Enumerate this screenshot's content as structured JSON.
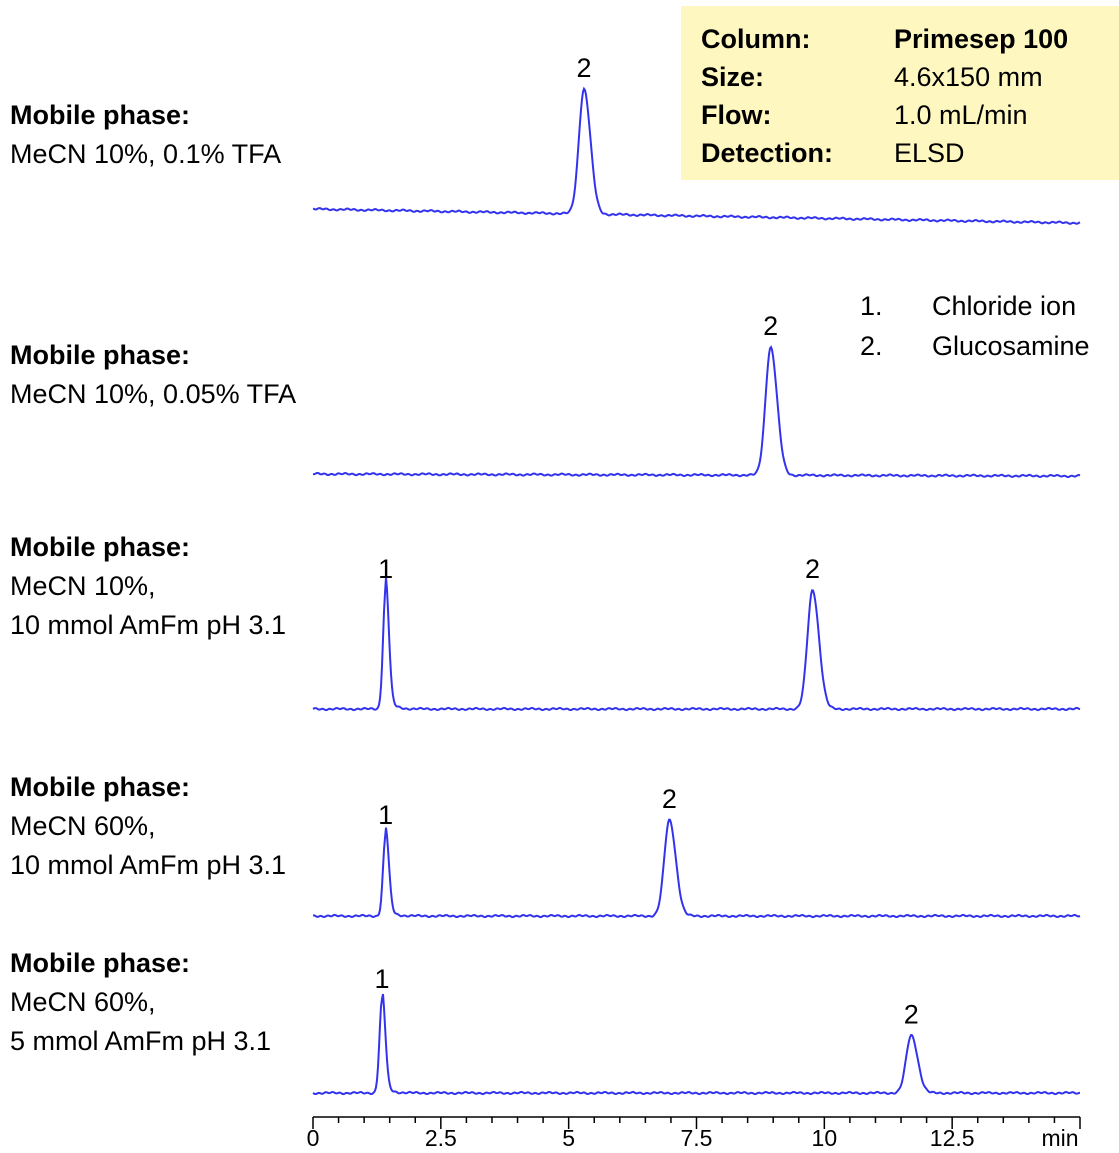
{
  "info": {
    "background": "#FFF7C0",
    "rows": [
      {
        "label": "Column:",
        "value": "Primesep 100"
      },
      {
        "label": "Size:",
        "value": "4.6x150 mm"
      },
      {
        "label": "Flow:",
        "value": "1.0 mL/min"
      },
      {
        "label": "Detection:",
        "value": "ELSD"
      }
    ]
  },
  "legend": [
    {
      "number": "1.",
      "name": "Chloride ion"
    },
    {
      "number": "2.",
      "name": "Glucosamine"
    }
  ],
  "phases": [
    {
      "title": "Mobile phase:",
      "lines": [
        "MeCN 10%, 0.1% TFA"
      ]
    },
    {
      "title": "Mobile phase:",
      "lines": [
        "MeCN 10%, 0.05% TFA"
      ]
    },
    {
      "title": "Mobile phase:",
      "lines": [
        "MeCN 10%,",
        "10 mmol AmFm pH 3.1"
      ]
    },
    {
      "title": "Mobile phase:",
      "lines": [
        "MeCN 60%,",
        "10 mmol AmFm pH 3.1"
      ]
    },
    {
      "title": "Mobile phase:",
      "lines": [
        "MeCN 60%,",
        "5 mmol AmFm pH 3.1"
      ]
    }
  ],
  "chart_data": {
    "type": "line",
    "title": "",
    "xlabel": "min",
    "ylabel": "",
    "xlim": [
      0,
      15
    ],
    "x_ticks": [
      "0",
      "2.5",
      "5",
      "7.5",
      "10",
      "12.5"
    ],
    "x_tick_values": [
      0,
      2.5,
      5,
      7.5,
      10,
      12.5
    ],
    "grid": false,
    "line_color": "#3333EE",
    "series": [
      {
        "peaks": [
          {
            "label": "2",
            "retention_min": 5.3,
            "height": 1.0
          }
        ]
      },
      {
        "peaks": [
          {
            "label": "2",
            "retention_min": 8.95,
            "height": 1.0
          }
        ]
      },
      {
        "peaks": [
          {
            "label": "1",
            "retention_min": 1.42,
            "height": 1.0
          },
          {
            "label": "2",
            "retention_min": 9.77,
            "height": 1.0
          }
        ]
      },
      {
        "peaks": [
          {
            "label": "1",
            "retention_min": 1.42,
            "height": 1.0
          },
          {
            "label": "2",
            "retention_min": 6.97,
            "height": 1.2
          }
        ]
      },
      {
        "peaks": [
          {
            "label": "1",
            "retention_min": 1.35,
            "height": 1.0
          },
          {
            "label": "2",
            "retention_min": 11.7,
            "height": 0.62
          }
        ]
      }
    ]
  }
}
